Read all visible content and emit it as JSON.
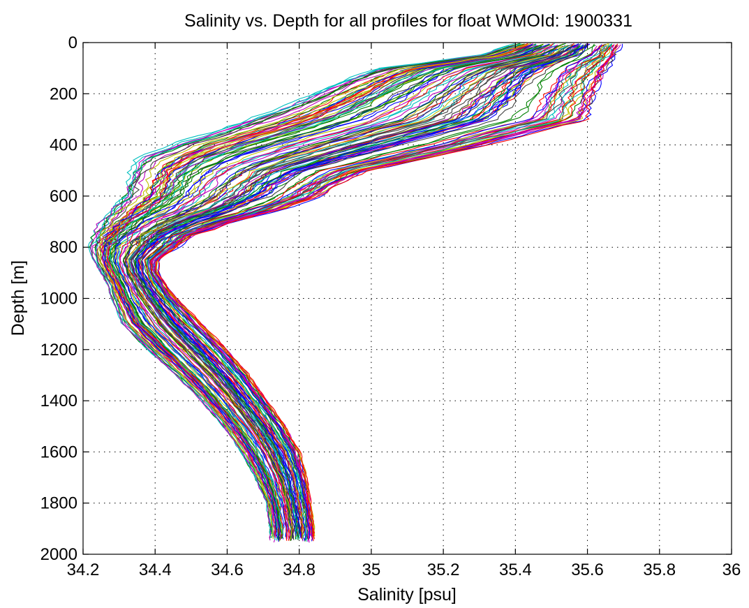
{
  "chart_data": {
    "type": "line",
    "title": "Salinity vs. Depth for all profiles for float WMOId: 1900331",
    "xlabel": "Salinity [psu]",
    "ylabel": "Depth [m]",
    "xlim": [
      34.2,
      36
    ],
    "ylim": [
      0,
      2000
    ],
    "y_reversed": true,
    "grid": true,
    "grid_style": "dotted",
    "legend": "none",
    "x_ticks": [
      34.2,
      34.4,
      34.6,
      34.8,
      35,
      35.2,
      35.4,
      35.6,
      35.8,
      36
    ],
    "x_tick_labels": [
      "34.2",
      "34.4",
      "34.6",
      "34.8",
      "35",
      "35.2",
      "35.4",
      "35.6",
      "35.8",
      "36"
    ],
    "y_ticks": [
      0,
      200,
      400,
      600,
      800,
      1000,
      1200,
      1400,
      1600,
      1800,
      2000
    ],
    "y_tick_labels": [
      "0",
      "200",
      "400",
      "600",
      "800",
      "1000",
      "1200",
      "1400",
      "1600",
      "1800",
      "2000"
    ],
    "series_colors": [
      "#0000ff",
      "#008000",
      "#ff0000",
      "#00bfbf",
      "#bf00bf",
      "#bfbf00",
      "#404040"
    ],
    "profile_count": 120,
    "profile_envelope": {
      "depth": [
        5,
        50,
        100,
        150,
        200,
        250,
        300,
        350,
        400,
        450,
        500,
        550,
        600,
        650,
        700,
        750,
        800,
        850,
        900,
        950,
        1000,
        1100,
        1200,
        1300,
        1400,
        1500,
        1600,
        1700,
        1800,
        1900,
        1950
      ],
      "salinity_low": [
        35.4,
        35.3,
        35.02,
        34.92,
        34.84,
        34.76,
        34.66,
        34.56,
        34.44,
        34.36,
        34.33,
        34.32,
        34.31,
        34.28,
        34.25,
        34.23,
        34.22,
        34.23,
        34.25,
        34.27,
        34.28,
        34.31,
        34.38,
        34.46,
        34.53,
        34.59,
        34.64,
        34.68,
        34.71,
        34.72,
        34.72
      ],
      "salinity_high": [
        35.69,
        35.68,
        35.66,
        35.64,
        35.63,
        35.62,
        35.61,
        35.46,
        35.33,
        35.17,
        35.0,
        34.92,
        34.86,
        34.76,
        34.62,
        34.51,
        34.46,
        34.41,
        34.41,
        34.43,
        34.46,
        34.53,
        34.6,
        34.66,
        34.71,
        34.76,
        34.8,
        34.82,
        34.83,
        34.84,
        34.84
      ]
    }
  }
}
